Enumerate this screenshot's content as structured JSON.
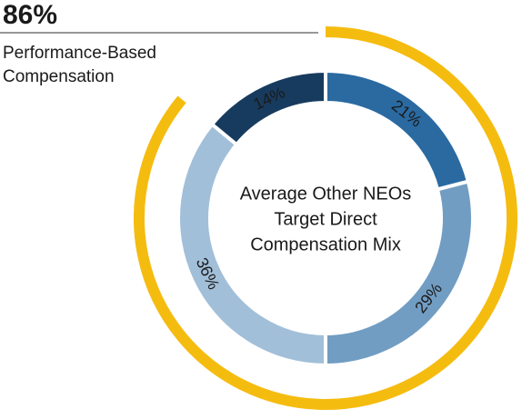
{
  "chart_data": {
    "type": "donut",
    "highlight": {
      "value": 86,
      "value_label": "86%",
      "text": [
        "Performance-Based",
        "Compensation"
      ],
      "color": "#f5bc10"
    },
    "center_label": [
      "Average Other NEOs",
      "Target Direct",
      "Compensation Mix"
    ],
    "categories": [
      null,
      null,
      null,
      null
    ],
    "values": [
      21,
      29,
      36,
      14
    ],
    "value_labels": [
      "21%",
      "29%",
      "36%",
      "14%"
    ],
    "colors": [
      "#2a6aa1",
      "#719dc3",
      "#a2bfd9",
      "#173b5e"
    ]
  }
}
